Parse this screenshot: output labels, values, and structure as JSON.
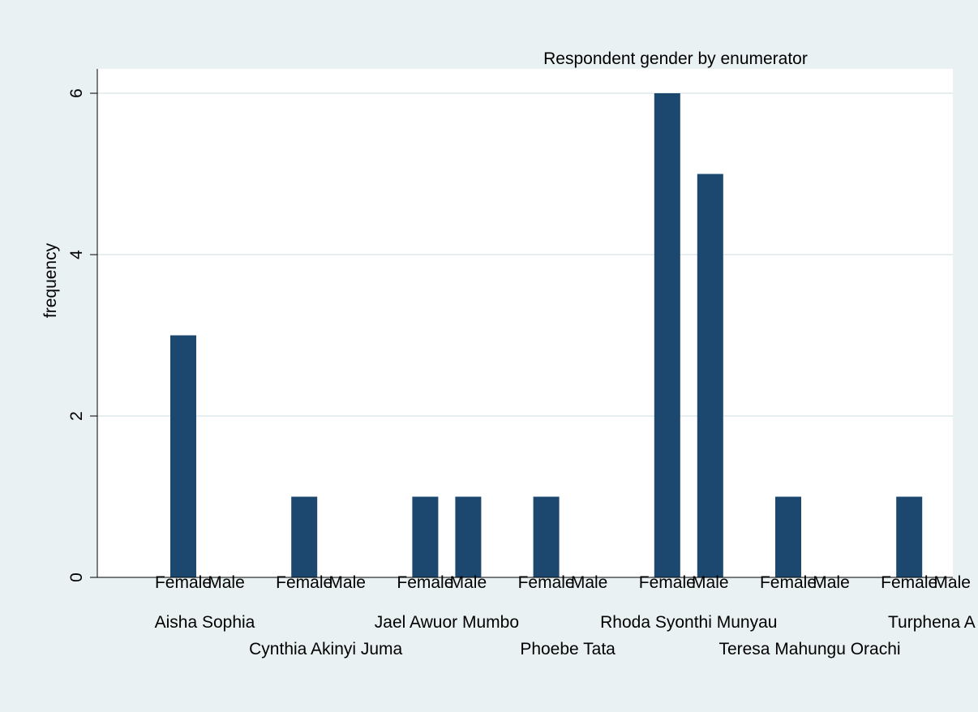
{
  "chart_data": {
    "type": "bar",
    "title": "Respondent gender by enumerator",
    "ylabel": "frequency",
    "xlabel": "",
    "ylim": [
      0,
      6.3
    ],
    "yticks": [
      0,
      2,
      4,
      6
    ],
    "grid": true,
    "legend": "none",
    "bar_color": "#1c4870",
    "groups": [
      {
        "name": "Aisha Sophia",
        "categories": [
          "Female",
          "Male"
        ],
        "values": [
          3,
          0
        ]
      },
      {
        "name": "Cynthia Akinyi Juma",
        "categories": [
          "Female",
          "Male"
        ],
        "values": [
          1,
          0
        ]
      },
      {
        "name": "Jael Awuor Mumbo",
        "categories": [
          "Female",
          "Male"
        ],
        "values": [
          1,
          1
        ]
      },
      {
        "name": "Phoebe Tata",
        "categories": [
          "Female",
          "Male"
        ],
        "values": [
          1,
          0
        ]
      },
      {
        "name": "Rhoda Syonthi Munyau",
        "categories": [
          "Female",
          "Male"
        ],
        "values": [
          6,
          5
        ]
      },
      {
        "name": "Teresa Mahungu Orachi",
        "categories": [
          "Female",
          "Male"
        ],
        "values": [
          1,
          0
        ]
      },
      {
        "name": "Turphena A",
        "categories": [
          "Female",
          "Male"
        ],
        "values": [
          1,
          0
        ]
      }
    ]
  },
  "colors": {
    "background": "#eaf1f3",
    "plot_region": "#ffffff",
    "bar": "#1c4870",
    "grid": "#e6eef0"
  }
}
